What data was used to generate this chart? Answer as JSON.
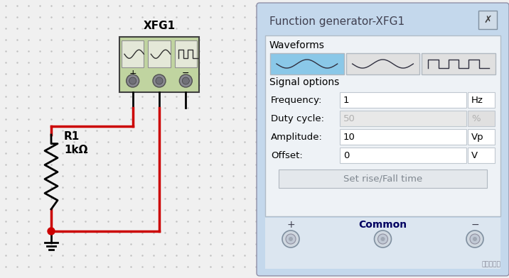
{
  "bg_color": "#f0f0f0",
  "dot_color": "#c0c0c0",
  "title_text": "Function generator-XFG1",
  "waveforms_label": "Waveforms",
  "signal_options_label": "Signal options",
  "fields": [
    "Frequency:",
    "Duty cycle:",
    "Amplitude:",
    "Offset:"
  ],
  "values": [
    "1",
    "50",
    "10",
    "0"
  ],
  "units": [
    "Hz",
    "%",
    "Vp",
    "V"
  ],
  "button_text": "Set rise/Fall time",
  "terminal_labels": [
    "+",
    "Common",
    "−"
  ],
  "xfg_label": "XFG1",
  "resistor_label": "R1",
  "resistor_value": "1kΩ",
  "wire_color": "#cc0000",
  "black": "#000000",
  "active_wave_btn_color": "#8ac8e8",
  "inactive_wave_btn_color": "#e0e0e0",
  "xfg_box_color": "#c0d4a0",
  "panel_outer_color": "#c8daea",
  "panel_title_bg": "#c8daea",
  "inner_content_bg": "#f0f4f8",
  "inner_content_border": "#c0c8d0",
  "watermark": "电路与电视",
  "common_label_color": "#000080",
  "btn_close_bg": "#d0d8e4",
  "bottom_section_bg": "#e0e8f0"
}
